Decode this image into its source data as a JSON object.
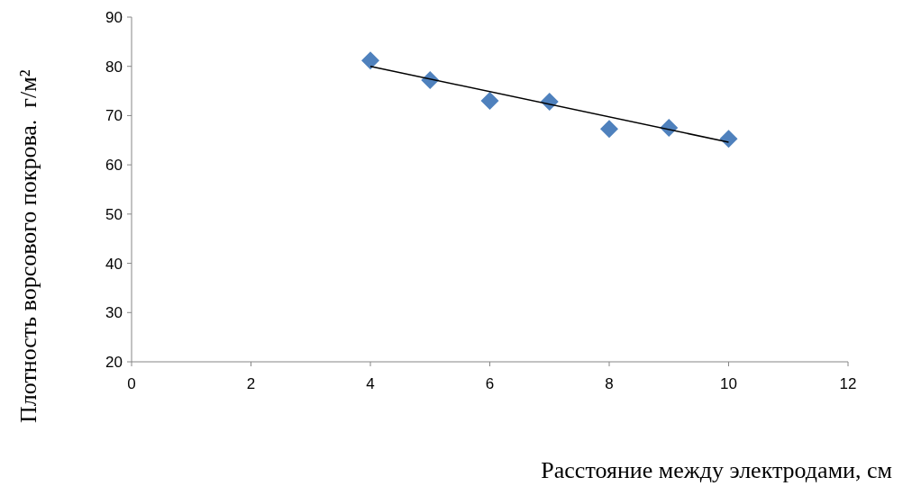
{
  "chart_data": {
    "type": "scatter",
    "xlabel": "Расстояние между электродами, см",
    "ylabel": "Плотность ворсового покрова.  г/м²",
    "xlim": [
      0,
      12
    ],
    "xticks": [
      0,
      2,
      4,
      6,
      8,
      10,
      12
    ],
    "ylim": [
      20,
      90
    ],
    "yticks": [
      20,
      30,
      40,
      50,
      60,
      70,
      80,
      90
    ],
    "grid": false,
    "series": [
      {
        "color": "#4f81bd",
        "marker": "diamond",
        "x": [
          4,
          5,
          6,
          7,
          8,
          9,
          10
        ],
        "values": [
          81.2,
          77.2,
          73,
          72.8,
          67.3,
          67.5,
          65.3
        ]
      },
      {
        "type": "line",
        "color": "#000000",
        "x": [
          4,
          10
        ],
        "values": [
          80,
          64.6
        ],
        "line_style": "solid"
      }
    ]
  }
}
